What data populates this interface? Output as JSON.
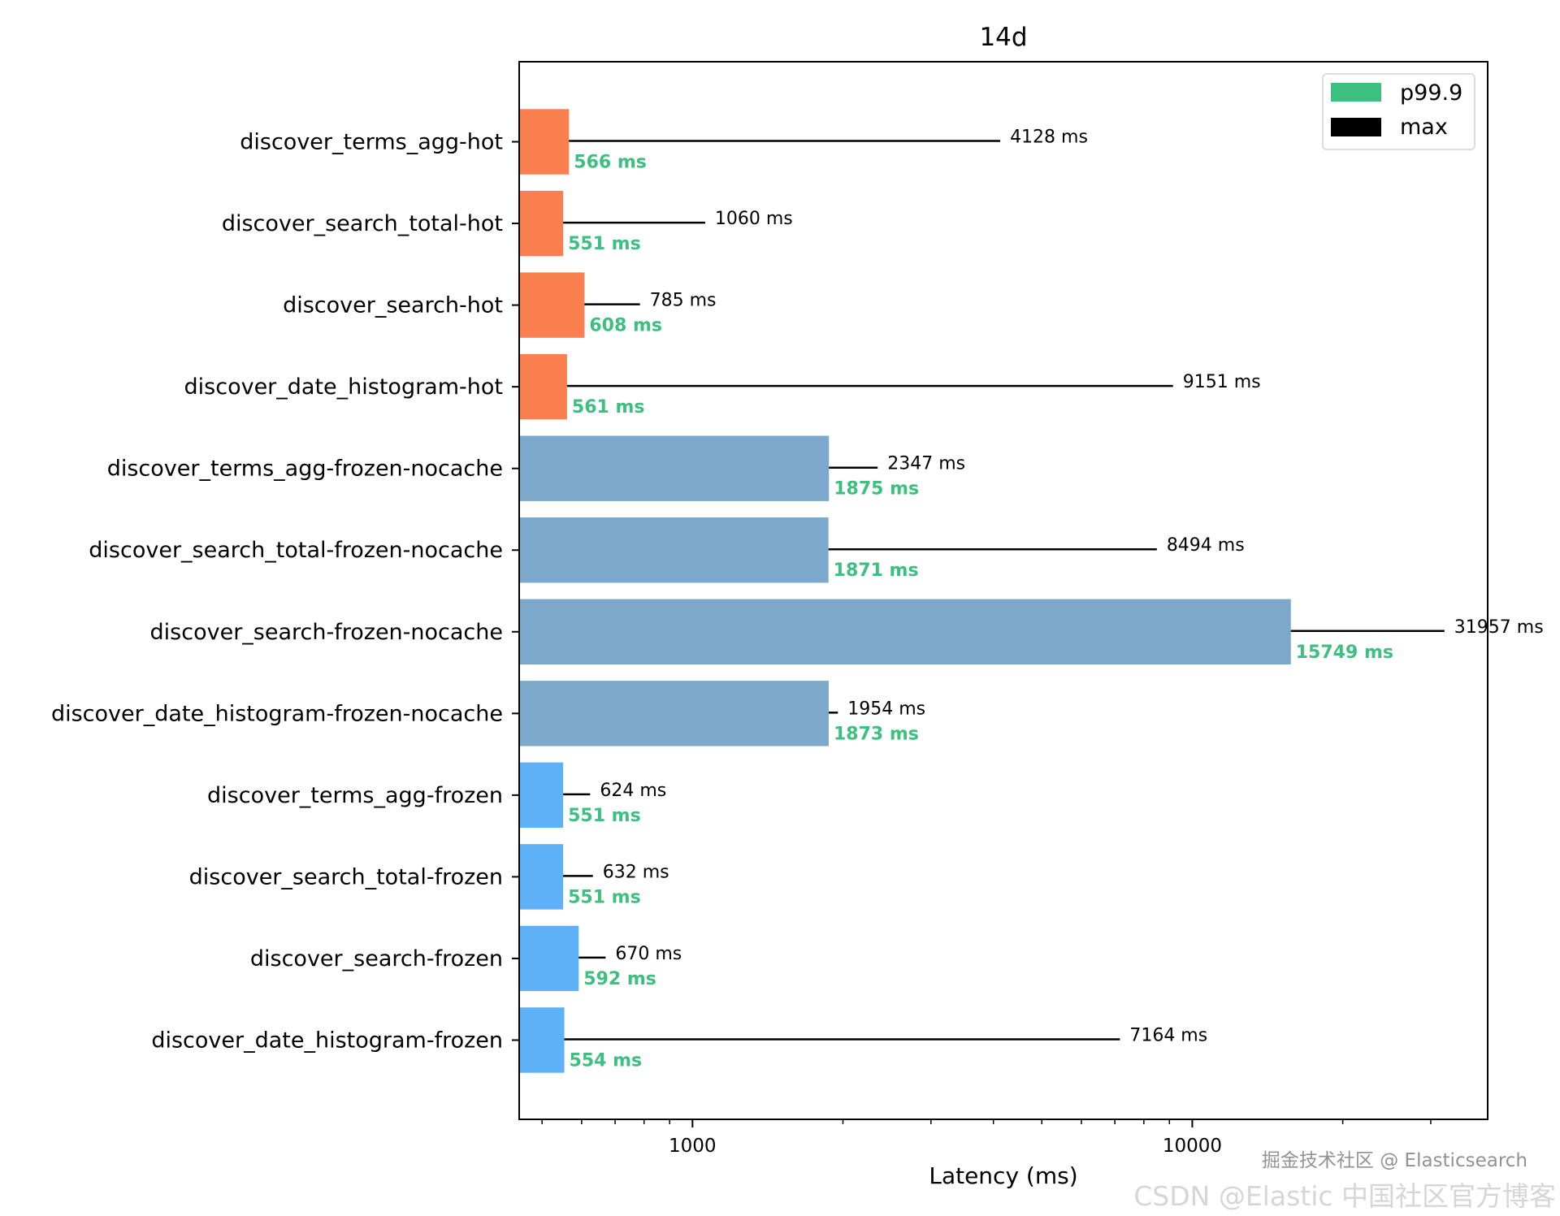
{
  "chart_data": {
    "type": "bar",
    "orientation": "horizontal",
    "title": "14d",
    "xlabel": "Latency (ms)",
    "ylabel": "",
    "xscale": "log",
    "xlim": [
      450,
      39000
    ],
    "xticks": [
      1000,
      10000
    ],
    "xtick_labels": [
      "1000",
      "10000"
    ],
    "grid": false,
    "legend": {
      "position": "top-right",
      "entries": [
        {
          "label": "p99.9",
          "color": "#3dbf7f"
        },
        {
          "label": "max",
          "color": "#000000"
        }
      ]
    },
    "value_unit": "ms",
    "categories": [
      "discover_terms_agg-hot",
      "discover_search_total-hot",
      "discover_search-hot",
      "discover_date_histogram-hot",
      "discover_terms_agg-frozen-nocache",
      "discover_search_total-frozen-nocache",
      "discover_search-frozen-nocache",
      "discover_date_histogram-frozen-nocache",
      "discover_terms_agg-frozen",
      "discover_search_total-frozen",
      "discover_search-frozen",
      "discover_date_histogram-frozen"
    ],
    "series": [
      {
        "name": "p99.9",
        "values": [
          566,
          551,
          608,
          561,
          1875,
          1871,
          15749,
          1873,
          551,
          551,
          592,
          554
        ]
      },
      {
        "name": "max",
        "values": [
          4128,
          1060,
          785,
          9151,
          2347,
          8494,
          31957,
          1954,
          624,
          632,
          670,
          7164
        ]
      }
    ],
    "bar_colors": [
      "#f97f4f",
      "#f97f4f",
      "#f97f4f",
      "#f97f4f",
      "#7ba8cb",
      "#7ba8cb",
      "#7ba8cb",
      "#7ba8cb",
      "#5eb0f7",
      "#5eb0f7",
      "#5eb0f7",
      "#5eb0f7"
    ],
    "label_color": "#3dbf7f"
  },
  "watermark": {
    "line1": "掘金技术社区 @ Elasticsearch",
    "line2": "CSDN @Elastic 中国社区官方博客"
  }
}
